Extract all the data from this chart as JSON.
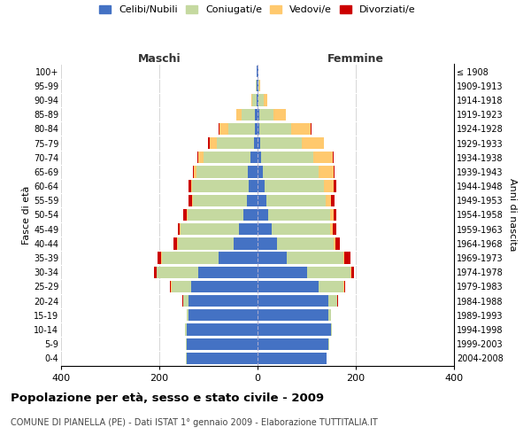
{
  "age_groups": [
    "0-4",
    "5-9",
    "10-14",
    "15-19",
    "20-24",
    "25-29",
    "30-34",
    "35-39",
    "40-44",
    "45-49",
    "50-54",
    "55-59",
    "60-64",
    "65-69",
    "70-74",
    "75-79",
    "80-84",
    "85-89",
    "90-94",
    "95-99",
    "100+"
  ],
  "birth_years": [
    "2004-2008",
    "1999-2003",
    "1994-1998",
    "1989-1993",
    "1984-1988",
    "1979-1983",
    "1974-1978",
    "1969-1973",
    "1964-1968",
    "1959-1963",
    "1954-1958",
    "1949-1953",
    "1944-1948",
    "1939-1943",
    "1934-1938",
    "1929-1933",
    "1924-1928",
    "1919-1923",
    "1914-1918",
    "1909-1913",
    "≤ 1908"
  ],
  "colors": {
    "celibi": "#4472c4",
    "coniugati": "#c5d9a0",
    "vedovi": "#ffc96e",
    "divorziati": "#cc0000"
  },
  "maschi": {
    "celibi": [
      145,
      145,
      145,
      140,
      140,
      135,
      120,
      80,
      48,
      38,
      28,
      22,
      18,
      20,
      15,
      8,
      5,
      5,
      2,
      1,
      1
    ],
    "coniugati": [
      1,
      1,
      2,
      5,
      12,
      40,
      85,
      115,
      115,
      118,
      115,
      110,
      115,
      105,
      95,
      75,
      55,
      28,
      8,
      2,
      0
    ],
    "vedovi": [
      0,
      0,
      0,
      0,
      0,
      1,
      1,
      1,
      1,
      2,
      2,
      2,
      3,
      5,
      10,
      15,
      18,
      10,
      3,
      1,
      0
    ],
    "divorziati": [
      0,
      0,
      0,
      0,
      1,
      2,
      5,
      8,
      8,
      5,
      6,
      6,
      5,
      2,
      2,
      2,
      1,
      0,
      0,
      0,
      0
    ]
  },
  "femmine": {
    "celibi": [
      140,
      145,
      150,
      145,
      145,
      125,
      100,
      60,
      40,
      28,
      22,
      18,
      15,
      10,
      8,
      5,
      4,
      3,
      2,
      1,
      1
    ],
    "coniugati": [
      1,
      1,
      2,
      5,
      18,
      50,
      90,
      115,
      115,
      120,
      125,
      120,
      120,
      115,
      105,
      85,
      65,
      30,
      10,
      2,
      0
    ],
    "vedovi": [
      0,
      0,
      0,
      0,
      0,
      1,
      1,
      2,
      3,
      5,
      8,
      12,
      20,
      30,
      40,
      45,
      40,
      25,
      8,
      2,
      0
    ],
    "divorziati": [
      0,
      0,
      0,
      0,
      1,
      2,
      5,
      12,
      10,
      8,
      6,
      6,
      5,
      2,
      2,
      1,
      1,
      0,
      0,
      0,
      0
    ]
  },
  "title": "Popolazione per età, sesso e stato civile - 2009",
  "subtitle": "COMUNE DI PIANELLA (PE) - Dati ISTAT 1° gennaio 2009 - Elaborazione TUTTITALIA.IT",
  "xlabel_left": "Maschi",
  "xlabel_right": "Femmine",
  "ylabel_left": "Fasce di età",
  "ylabel_right": "Anni di nascita",
  "xlim": 400,
  "legend_labels": [
    "Celibi/Nubili",
    "Coniugati/e",
    "Vedovi/e",
    "Divorziati/e"
  ],
  "bg_color": "#ffffff",
  "grid_color": "#d0d0d0"
}
